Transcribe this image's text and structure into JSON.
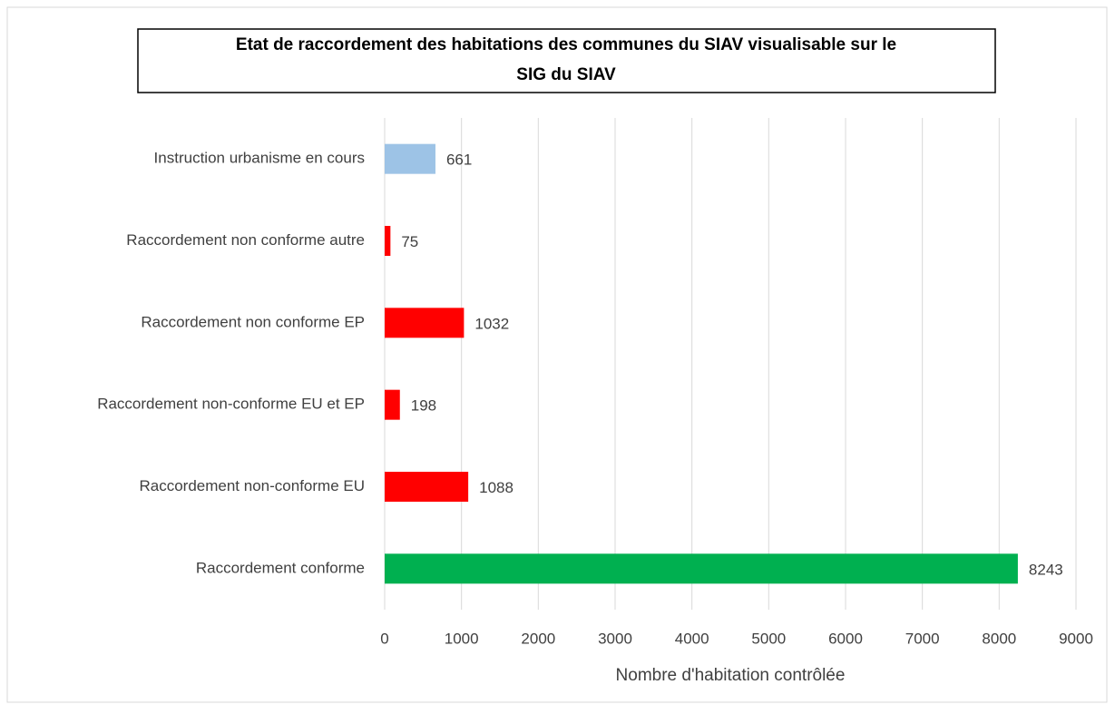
{
  "chart_data": {
    "type": "barh",
    "title": "Etat de raccordement des habitations des communes du SIAV visualisable sur le SIG du SIAV",
    "categories": [
      "Instruction urbanisme en cours",
      "Raccordement non conforme autre",
      "Raccordement non conforme EP",
      "Raccordement non-conforme EU et EP",
      "Raccordement non-conforme EU",
      "Raccordement conforme"
    ],
    "values": [
      661,
      75,
      1032,
      198,
      1088,
      8243
    ],
    "colors": [
      "#9dc3e6",
      "#ff0000",
      "#ff0000",
      "#ff0000",
      "#ff0000",
      "#00b050"
    ],
    "xlabel": "Nombre d'habitation contrôlée",
    "xlim": [
      0,
      9000
    ],
    "xticks": [
      0,
      1000,
      2000,
      3000,
      4000,
      5000,
      6000,
      7000,
      8000,
      9000
    ],
    "grid": true
  }
}
